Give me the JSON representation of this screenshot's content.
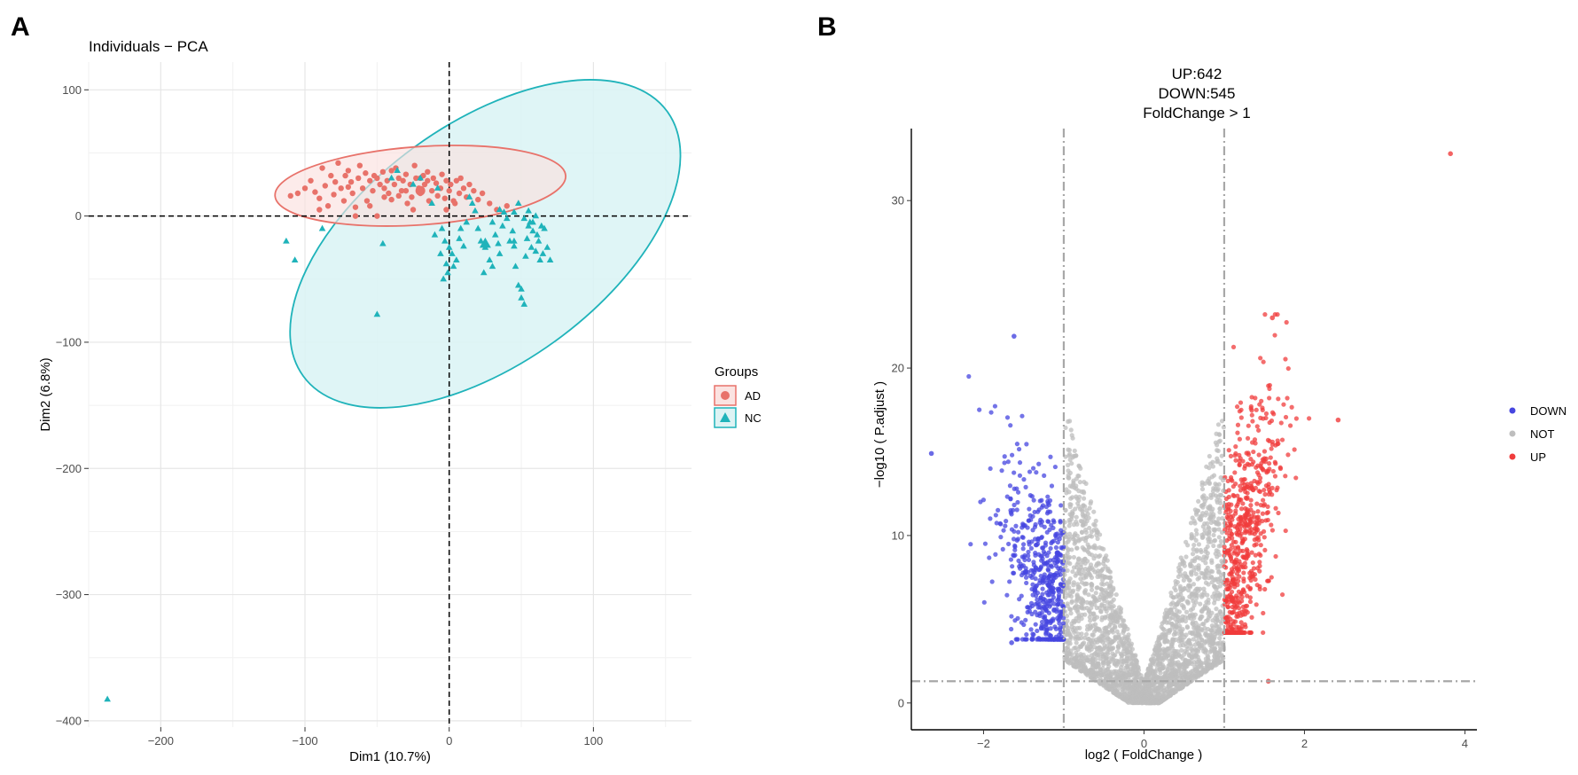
{
  "panels": {
    "a_letter": "A",
    "b_letter": "B"
  },
  "chart_data": [
    {
      "type": "scatter",
      "title": "Individuals − PCA",
      "xlabel": "Dim1 (10.7%)",
      "ylabel": "Dim2 (6.8%)",
      "xlim": [
        -250,
        168
      ],
      "ylim": [
        -405,
        122
      ],
      "xticks": [
        -200,
        -100,
        0,
        100
      ],
      "xtick_labels": [
        "−200",
        "−100",
        "0",
        "100"
      ],
      "yticks": [
        -400,
        -300,
        -200,
        -100,
        0,
        100
      ],
      "ytick_labels": [
        "−400",
        "−300",
        "−200",
        "−100",
        "0",
        "100"
      ],
      "grid": true,
      "reference_lines": {
        "x": 0,
        "y": 0
      },
      "legend": {
        "title": "Groups",
        "position": "right",
        "entries": [
          "AD",
          "NC"
        ]
      },
      "colors": {
        "AD": "#E8726A",
        "NC": "#1FB3BA"
      },
      "series": [
        {
          "name": "AD",
          "marker": "circle",
          "centroid": [
            -20,
            20
          ],
          "ellipse": {
            "center": [
              -20,
              24
            ],
            "rx": 101,
            "ry": 31,
            "angle_deg": -4
          },
          "points": [
            [
              -110,
              16
            ],
            [
              -105,
              18
            ],
            [
              -100,
              22
            ],
            [
              -96,
              28
            ],
            [
              -93,
              19
            ],
            [
              -90,
              14
            ],
            [
              -88,
              38
            ],
            [
              -86,
              24
            ],
            [
              -84,
              8
            ],
            [
              -82,
              32
            ],
            [
              -80,
              17
            ],
            [
              -79,
              27
            ],
            [
              -77,
              42
            ],
            [
              -75,
              22
            ],
            [
              -73,
              12
            ],
            [
              -72,
              32
            ],
            [
              -70,
              36
            ],
            [
              -68,
              27
            ],
            [
              -67,
              18
            ],
            [
              -65,
              7
            ],
            [
              -63,
              30
            ],
            [
              -62,
              40
            ],
            [
              -60,
              22
            ],
            [
              -58,
              34
            ],
            [
              -57,
              12
            ],
            [
              -55,
              28
            ],
            [
              -53,
              20
            ],
            [
              -52,
              32
            ],
            [
              -50,
              30
            ],
            [
              -48,
              25
            ],
            [
              -46,
              35
            ],
            [
              -45,
              22
            ],
            [
              -43,
              28
            ],
            [
              -42,
              18
            ],
            [
              -40,
              36
            ],
            [
              -38,
              25
            ],
            [
              -37,
              38
            ],
            [
              -35,
              30
            ],
            [
              -33,
              20
            ],
            [
              -32,
              28
            ],
            [
              -30,
              33
            ],
            [
              -29,
              10
            ],
            [
              -27,
              25
            ],
            [
              -26,
              15
            ],
            [
              -24,
              40
            ],
            [
              -23,
              30
            ],
            [
              -21,
              22
            ],
            [
              -20,
              18
            ],
            [
              -18,
              32
            ],
            [
              -17,
              25
            ],
            [
              -15,
              28
            ],
            [
              -14,
              12
            ],
            [
              -12,
              20
            ],
            [
              -11,
              30
            ],
            [
              -9,
              26
            ],
            [
              -8,
              16
            ],
            [
              -6,
              22
            ],
            [
              -5,
              33
            ],
            [
              -3,
              14
            ],
            [
              -2,
              28
            ],
            [
              0,
              20
            ],
            [
              1,
              25
            ],
            [
              3,
              12
            ],
            [
              5,
              28
            ],
            [
              7,
              18
            ],
            [
              8,
              30
            ],
            [
              10,
              22
            ],
            [
              12,
              15
            ],
            [
              14,
              25
            ],
            [
              17,
              20
            ],
            [
              20,
              13
            ],
            [
              23,
              18
            ],
            [
              28,
              10
            ],
            [
              33,
              5
            ],
            [
              40,
              8
            ],
            [
              -20,
              30
            ],
            [
              -15,
              35
            ],
            [
              -65,
              0
            ],
            [
              -40,
              13
            ],
            [
              -25,
              5
            ],
            [
              -90,
              5
            ],
            [
              -50,
              0
            ],
            [
              -35,
              16
            ],
            [
              -55,
              8
            ],
            [
              -45,
              15
            ],
            [
              -30,
              20
            ],
            [
              -2,
              5
            ],
            [
              4,
              10
            ],
            [
              -70,
              23
            ]
          ]
        },
        {
          "name": "NC",
          "marker": "triangle",
          "centroid": [
            25,
            -22
          ],
          "ellipse": {
            "center": [
              25,
              -22
            ],
            "rx": 156,
            "ry": 95,
            "angle_deg": -36
          },
          "points": [
            [
              -237,
              -383
            ],
            [
              -113,
              -20
            ],
            [
              -107,
              -35
            ],
            [
              -88,
              -10
            ],
            [
              -50,
              -78
            ],
            [
              -46,
              -22
            ],
            [
              -40,
              30
            ],
            [
              -36,
              36
            ],
            [
              -25,
              25
            ],
            [
              -20,
              30
            ],
            [
              -12,
              10
            ],
            [
              -8,
              22
            ],
            [
              -6,
              -30
            ],
            [
              -5,
              -10
            ],
            [
              -3,
              -20
            ],
            [
              -2,
              -38
            ],
            [
              -1,
              -45
            ],
            [
              0,
              -25
            ],
            [
              2,
              -30
            ],
            [
              3,
              -40
            ],
            [
              5,
              -35
            ],
            [
              7,
              -18
            ],
            [
              8,
              -10
            ],
            [
              10,
              -24
            ],
            [
              12,
              -5
            ],
            [
              14,
              15
            ],
            [
              16,
              10
            ],
            [
              18,
              4
            ],
            [
              20,
              -10
            ],
            [
              22,
              -20
            ],
            [
              25,
              -25
            ],
            [
              28,
              -35
            ],
            [
              30,
              -40
            ],
            [
              32,
              -15
            ],
            [
              34,
              -22
            ],
            [
              35,
              5
            ],
            [
              37,
              -8
            ],
            [
              38,
              3
            ],
            [
              40,
              -2
            ],
            [
              42,
              -20
            ],
            [
              44,
              -12
            ],
            [
              45,
              -24
            ],
            [
              46,
              -40
            ],
            [
              48,
              -55
            ],
            [
              50,
              -65
            ],
            [
              52,
              -70
            ],
            [
              53,
              -32
            ],
            [
              54,
              -18
            ],
            [
              55,
              -8
            ],
            [
              56,
              -5
            ],
            [
              57,
              -25
            ],
            [
              58,
              -12
            ],
            [
              60,
              -28
            ],
            [
              61,
              -15
            ],
            [
              62,
              -20
            ],
            [
              63,
              -35
            ],
            [
              64,
              -8
            ],
            [
              65,
              -30
            ],
            [
              66,
              -10
            ],
            [
              68,
              -25
            ],
            [
              70,
              -35
            ],
            [
              45,
              3
            ],
            [
              48,
              10
            ],
            [
              52,
              -2
            ],
            [
              55,
              4
            ],
            [
              58,
              -5
            ],
            [
              60,
              0
            ],
            [
              50,
              -58
            ],
            [
              45,
              -20
            ],
            [
              35,
              -30
            ],
            [
              30,
              -5
            ],
            [
              24,
              -45
            ],
            [
              -10,
              -15
            ],
            [
              -4,
              -50
            ]
          ]
        }
      ]
    },
    {
      "type": "scatter",
      "title_lines": [
        "UP:642",
        "DOWN:545",
        "FoldChange > 1"
      ],
      "xlabel": "log2 ( FoldChange )",
      "ylabel": "−log10 ( P.adjust )",
      "xlim": [
        -2.9,
        4.15
      ],
      "ylim": [
        -1.6,
        34.3
      ],
      "xticks": [
        -2,
        0,
        2,
        4
      ],
      "xtick_labels": [
        "−2",
        "0",
        "2",
        "4"
      ],
      "yticks": [
        0,
        10,
        20,
        30
      ],
      "ytick_labels": [
        "0",
        "10",
        "20",
        "30"
      ],
      "grid": false,
      "threshold_lines": {
        "x": [
          -1,
          1
        ],
        "y": 1.3
      },
      "legend": {
        "position": "right",
        "entries": [
          "DOWN",
          "NOT",
          "UP"
        ]
      },
      "colors": {
        "DOWN": "#4646E0",
        "NOT": "#BEBEBE",
        "UP": "#F03C3C"
      },
      "counts": {
        "UP": 642,
        "DOWN": 545
      },
      "series": [
        {
          "name": "DOWN",
          "x_range": [
            -2.65,
            -1.0
          ],
          "y_range": [
            2.7,
            22.0
          ],
          "n_drawn": 545
        },
        {
          "name": "NOT",
          "x_range": [
            -1.0,
            1.0
          ],
          "y_range": [
            0,
            17.5
          ],
          "n_drawn": 2600
        },
        {
          "name": "UP",
          "x_range": [
            1.0,
            3.82
          ],
          "y_range": [
            1.3,
            32.8
          ],
          "n_drawn": 642
        }
      ],
      "notable_points": [
        [
          3.82,
          32.8
        ],
        [
          -2.65,
          14.9
        ],
        [
          -1.62,
          21.9
        ],
        [
          1.6,
          23.0
        ],
        [
          2.42,
          16.9
        ],
        [
          -1.65,
          3.6
        ],
        [
          1.55,
          1.3
        ]
      ]
    }
  ]
}
